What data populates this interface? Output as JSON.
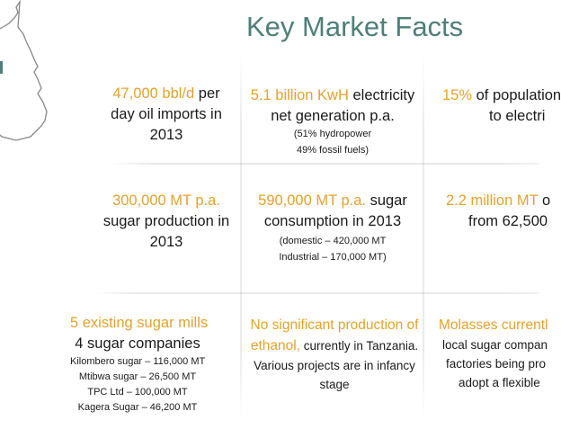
{
  "title": "Key Market Facts",
  "colors": {
    "title": "#4f7f78",
    "accent": "#e3a22c",
    "text": "#1a1a1a",
    "map_outline": "#888888"
  },
  "facts": {
    "oil": {
      "accent": "47,000 bbl/d",
      "rest1": " per",
      "line2": "day oil imports in",
      "line3": "2013"
    },
    "electricity": {
      "accent": "5.1 billion KwH",
      "rest1": " electricity",
      "line2": "net generation p.a.",
      "note1": "(51% hydropower",
      "note2": "49% fossil fuels)"
    },
    "population": {
      "accent": "15%",
      "rest1": " of population",
      "line2": "to electri"
    },
    "sugar_prod": {
      "accent": "300,000 MT p.a.",
      "line2": "sugar production in",
      "line3": "2013"
    },
    "sugar_cons": {
      "accent": "590,000 MT p.a.",
      "rest1": " sugar",
      "line2": "consumption in 2013",
      "note1": "(domestic – 420,000 MT",
      "note2": "Industrial – 170,000 MT)"
    },
    "cane": {
      "accent": "2.2 million MT",
      "rest1": " o",
      "line2": "from 62,500"
    },
    "mills": {
      "accent": "5 existing sugar mills",
      "line2": "4 sugar companies",
      "items": [
        "Kilombero sugar – 116,000 MT",
        "Mtibwa sugar – 26,500 MT",
        "TPC Ltd – 100,000 MT",
        "Kagera Sugar – 46,200 MT"
      ]
    },
    "ethanol": {
      "accent1": "No significant production of",
      "accent2": "ethanol,",
      "rest2": " currently in Tanzania.",
      "line3": "Various projects are in infancy",
      "line4": "stage"
    },
    "molasses": {
      "accent": "Molasses currentl",
      "line2": "local sugar compan",
      "line3": "factories being pro",
      "line4": "adopt a flexible"
    }
  }
}
